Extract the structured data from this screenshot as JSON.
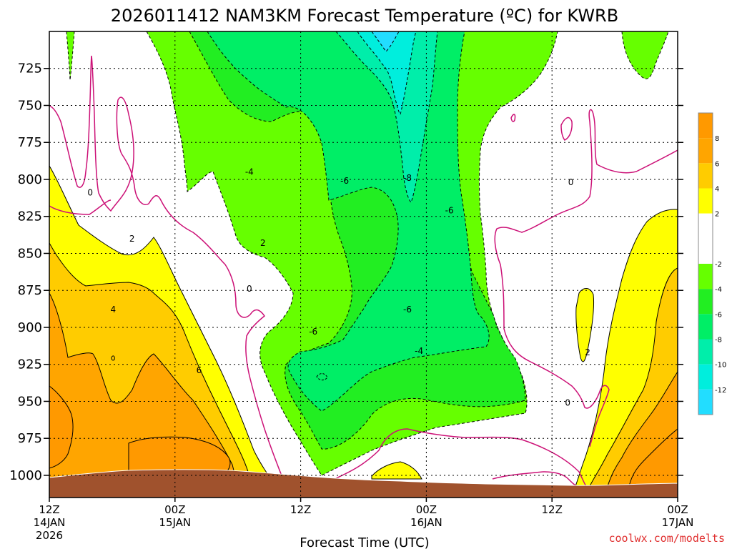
{
  "chart_data": {
    "type": "contour",
    "title": "2026011412 NAM3KM Forecast Temperature (ºC) for KWRB",
    "xlabel": "Forecast Time (UTC)",
    "ylabel": "",
    "credit": "coolwx.com/modelts",
    "y_axis": {
      "ticks": [
        725,
        750,
        775,
        800,
        825,
        850,
        875,
        900,
        925,
        950,
        975,
        1000
      ],
      "tick_labels": [
        "725",
        "750",
        "775",
        "800",
        "825",
        "850",
        "875",
        "900",
        "925",
        "950",
        "975",
        "1000"
      ],
      "range": [
        700,
        1015
      ],
      "inverted": true
    },
    "x_axis": {
      "ticks": [
        0,
        12,
        24,
        36,
        48,
        60
      ],
      "tick_labels": [
        [
          "12Z",
          "14JAN",
          "2026"
        ],
        [
          "00Z",
          "15JAN"
        ],
        [
          "12Z"
        ],
        [
          "00Z",
          "16JAN"
        ],
        [
          "12Z"
        ],
        [
          "00Z",
          "17JAN"
        ]
      ],
      "units": "forecast hour",
      "range": [
        0,
        60
      ]
    },
    "grid": true,
    "colorbar": {
      "placement": "right",
      "tick_labels": [
        "8",
        "6",
        "4",
        "2",
        "-2",
        "-4",
        "-6",
        "-8",
        "-10",
        "-12"
      ],
      "bands": [
        {
          "from": 8,
          "to": 10,
          "color": "#ff9900"
        },
        {
          "from": 6,
          "to": 8,
          "color": "#ffa500"
        },
        {
          "from": 4,
          "to": 6,
          "color": "#ffcc00"
        },
        {
          "from": 2,
          "to": 4,
          "color": "#ffff00"
        },
        {
          "from": -2,
          "to": 2,
          "color": "#ffffff"
        },
        {
          "from": -4,
          "to": -2,
          "color": "#66ff00"
        },
        {
          "from": -6,
          "to": -4,
          "color": "#22ee22"
        },
        {
          "from": -8,
          "to": -6,
          "color": "#00ee66"
        },
        {
          "from": -10,
          "to": -8,
          "color": "#00eeaa"
        },
        {
          "from": -12,
          "to": -10,
          "color": "#00eedd"
        },
        {
          "from": -14,
          "to": -12,
          "color": "#22ddff"
        }
      ]
    },
    "contour_labels": [
      {
        "label": "0",
        "x": 3.9,
        "y": 809
      },
      {
        "label": "2",
        "x": 7.9,
        "y": 840
      },
      {
        "label": "-4",
        "x": 19.1,
        "y": 795
      },
      {
        "label": "2",
        "x": 20.4,
        "y": 843
      },
      {
        "label": "0",
        "x": 19.1,
        "y": 874
      },
      {
        "label": "-6",
        "x": 28.2,
        "y": 801
      },
      {
        "label": "-8",
        "x": 34.2,
        "y": 799
      },
      {
        "label": "-6",
        "x": 38.2,
        "y": 821
      },
      {
        "label": "-6",
        "x": 34.2,
        "y": 888
      },
      {
        "label": "-6",
        "x": 25.2,
        "y": 903
      },
      {
        "label": "-4",
        "x": 35.3,
        "y": 916
      },
      {
        "label": "4",
        "x": 6.1,
        "y": 888
      },
      {
        "label": "6",
        "x": 14.3,
        "y": 929
      },
      {
        "label": "0",
        "x": 49.8,
        "y": 802
      },
      {
        "label": "2",
        "x": 51.4,
        "y": 917
      },
      {
        "label": "0",
        "x": 49.5,
        "y": 951
      }
    ],
    "ground_pressure_range": [
      995,
      1008
    ]
  }
}
